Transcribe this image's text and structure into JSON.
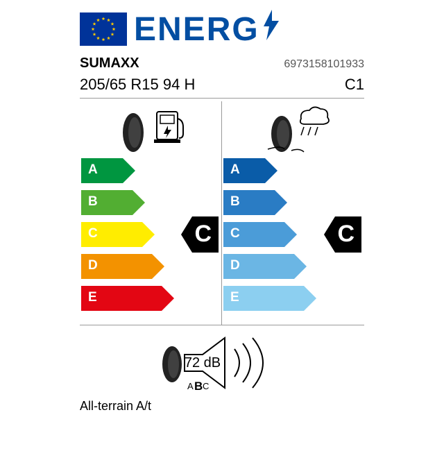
{
  "header": {
    "word": "ENERG"
  },
  "product": {
    "brand": "SUMAXX",
    "ean": "6973158101933",
    "spec": "205/65 R15 94 H",
    "class": "C1",
    "name": "All-terrain A/t"
  },
  "scales": {
    "fuel": {
      "type": "efficiency-scale",
      "grades": [
        "A",
        "B",
        "C",
        "D",
        "E"
      ],
      "colors": [
        "#009640",
        "#52ae32",
        "#ffed00",
        "#f39200",
        "#e30613"
      ],
      "lengths": [
        60,
        74,
        88,
        102,
        116
      ],
      "rating": "C",
      "badge_color": "#000000",
      "label_fontsize": 19
    },
    "wet": {
      "type": "efficiency-scale",
      "grades": [
        "A",
        "B",
        "C",
        "D",
        "E"
      ],
      "colors": [
        "#0a5ca8",
        "#2a7cc4",
        "#4b9cd8",
        "#6bb6e4",
        "#8ccff0"
      ],
      "lengths": [
        60,
        74,
        88,
        102,
        116
      ],
      "rating": "C",
      "badge_color": "#000000",
      "label_fontsize": 19
    }
  },
  "noise": {
    "value": "72 dB",
    "classes": "ABC",
    "highlighted_class": "B"
  },
  "layout": {
    "arrow_height": 36,
    "arrow_gap": 46,
    "badge_height": 52
  },
  "colors": {
    "brand_blue": "#034ea2",
    "eu_blue": "#003399",
    "eu_gold": "#ffcc00",
    "border": "#999999",
    "text": "#000000",
    "white": "#ffffff"
  }
}
